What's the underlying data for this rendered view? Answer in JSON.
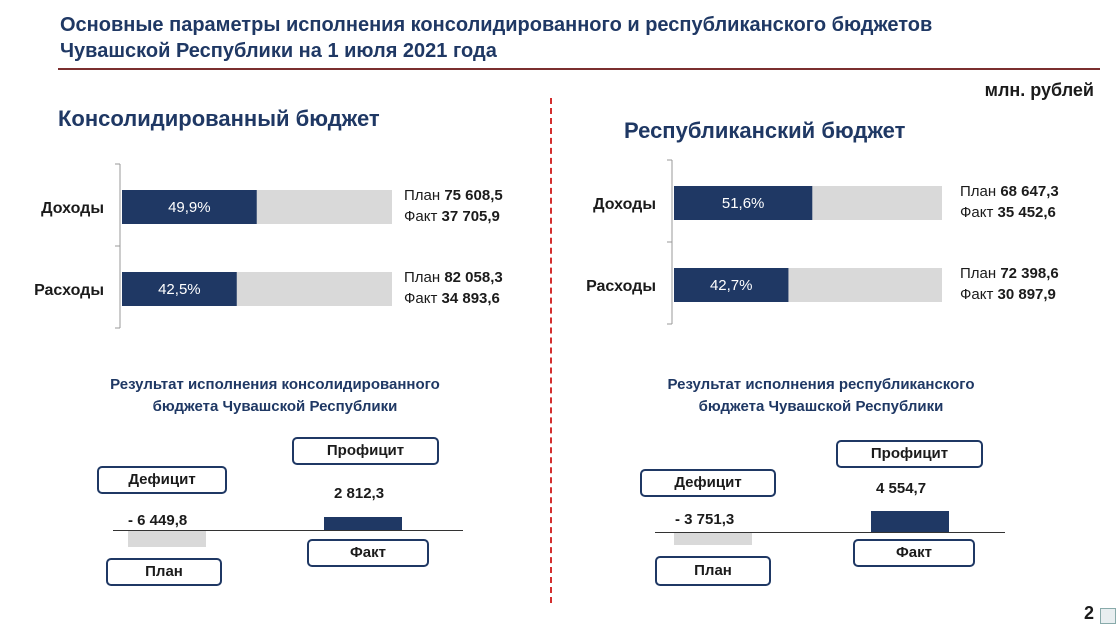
{
  "header": {
    "title_line1": "Основные параметры исполнения консолидированного и республиканского бюджетов",
    "title_line2": "Чувашской Республики на 1 июля 2021 года",
    "unit": "млн. рублей"
  },
  "colors": {
    "fact": "#1f3864",
    "plan": "#d9d9d9",
    "accent": "#d32f2f"
  },
  "chart_data": [
    {
      "type": "bar",
      "orientation": "horizontal",
      "title": "Консолидированный бюджет",
      "categories": [
        "Доходы",
        "Расходы"
      ],
      "percent_labels": [
        "49,9%",
        "42,5%"
      ],
      "execution_percent": [
        49.9,
        42.5
      ],
      "series": [
        {
          "name": "План",
          "values": [
            75608.5,
            82058.3
          ],
          "labels": [
            "75 608,5",
            "82 058,3"
          ]
        },
        {
          "name": "Факт",
          "values": [
            37705.9,
            34893.6
          ],
          "labels": [
            "37 705,9",
            "34 893,6"
          ]
        }
      ]
    },
    {
      "type": "bar",
      "orientation": "horizontal",
      "title": "Республиканский бюджет",
      "categories": [
        "Доходы",
        "Расходы"
      ],
      "percent_labels": [
        "51,6%",
        "42,7%"
      ],
      "execution_percent": [
        51.6,
        42.7
      ],
      "series": [
        {
          "name": "План",
          "values": [
            68647.3,
            72398.6
          ],
          "labels": [
            "68 647,3",
            "72 398,6"
          ]
        },
        {
          "name": "Факт",
          "values": [
            35452.6,
            30897.9
          ],
          "labels": [
            "35 452,6",
            "30 897,9"
          ]
        }
      ]
    },
    {
      "type": "bar",
      "title_line1": "Результат исполнения консолидированного",
      "title_line2": "бюджета Чувашской Республики",
      "categories": [
        "План",
        "Факт"
      ],
      "values": [
        -6449.8,
        2812.3
      ],
      "value_labels": [
        "- 6 449,8",
        "2 812,3"
      ],
      "deficit_label": "Дефицит",
      "surplus_label": "Профицит"
    },
    {
      "type": "bar",
      "title_line1": "Результат исполнения республиканского",
      "title_line2": "бюджета Чувашской Республики",
      "categories": [
        "План",
        "Факт"
      ],
      "values": [
        -3751.3,
        4554.7
      ],
      "value_labels": [
        "- 3 751,3",
        "4 554,7"
      ],
      "deficit_label": "Дефицит",
      "surplus_label": "Профицит"
    }
  ],
  "footer": {
    "page_number": "2"
  }
}
